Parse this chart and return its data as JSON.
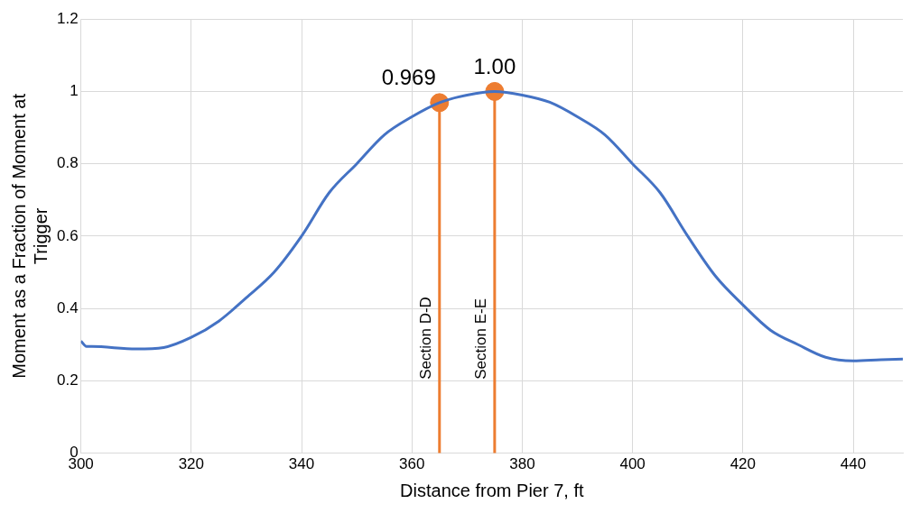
{
  "chart_data": {
    "type": "line",
    "xlabel": "Distance from Pier 7, ft",
    "ylabel": "Moment as a Fraction of Moment at Trigger",
    "xlim": [
      300,
      449
    ],
    "xticks": [
      300,
      320,
      340,
      360,
      380,
      400,
      420,
      440
    ],
    "ylim": [
      0,
      1.2
    ],
    "yticks": [
      0,
      0.2,
      0.4,
      0.6,
      0.8,
      1,
      1.2
    ],
    "grid": true,
    "legend": false,
    "series": [
      {
        "color": "#4472c4",
        "marker": "none",
        "x": [
          300,
          301,
          302,
          310,
          315,
          320,
          325,
          330,
          335,
          340,
          345,
          350,
          355,
          360,
          365,
          370,
          375,
          380,
          385,
          390,
          395,
          400,
          405,
          410,
          415,
          420,
          425,
          430,
          435,
          440,
          445,
          449
        ],
        "values": [
          0.31,
          0.295,
          0.295,
          0.288,
          0.292,
          0.32,
          0.365,
          0.43,
          0.5,
          0.6,
          0.72,
          0.8,
          0.88,
          0.93,
          0.969,
          0.99,
          1.0,
          0.99,
          0.97,
          0.93,
          0.88,
          0.8,
          0.72,
          0.6,
          0.49,
          0.41,
          0.34,
          0.3,
          0.265,
          0.255,
          0.258,
          0.26
        ]
      },
      {
        "type": "lollipop",
        "color": "#ed7d31",
        "marker": "circle",
        "x": [
          365,
          375
        ],
        "values": [
          0.969,
          1.0
        ],
        "value_labels": [
          "0.969",
          "1.00"
        ]
      }
    ],
    "annotations": [
      "Section D-D",
      "Section E-E"
    ]
  }
}
